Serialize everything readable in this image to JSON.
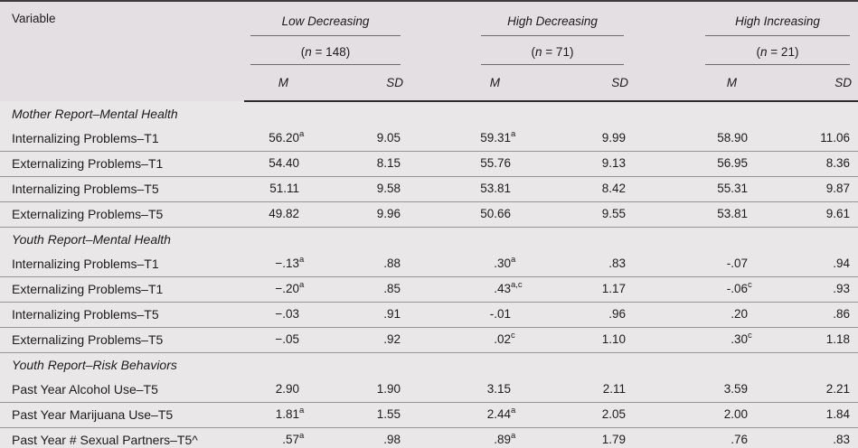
{
  "table": {
    "variable_header": "Variable",
    "groups": [
      {
        "name": "Low Decreasing",
        "n_prefix": "(",
        "n_symbol": "n",
        "n_rest": " = 148)",
        "m": "M",
        "sd": "SD"
      },
      {
        "name": "High Decreasing",
        "n_prefix": "(",
        "n_symbol": "n",
        "n_rest": " = 71)",
        "m": "M",
        "sd": "SD"
      },
      {
        "name": "High Increasing",
        "n_prefix": "(",
        "n_symbol": "n",
        "n_rest": " = 21)",
        "m": "M",
        "sd": "SD"
      }
    ],
    "sections": [
      {
        "title": "Mother Report–Mental Health",
        "rows": [
          {
            "label": "Internalizing Problems–T1",
            "values": [
              {
                "v": "56.20",
                "sup": "a"
              },
              {
                "v": "9.05"
              },
              {
                "v": "59.31",
                "sup": "a"
              },
              {
                "v": "9.99"
              },
              {
                "v": "58.90"
              },
              {
                "v": "11.06"
              }
            ]
          },
          {
            "label": "Externalizing Problems–T1",
            "values": [
              {
                "v": "54.40"
              },
              {
                "v": "8.15"
              },
              {
                "v": "55.76"
              },
              {
                "v": "9.13"
              },
              {
                "v": "56.95"
              },
              {
                "v": "8.36"
              }
            ]
          },
          {
            "label": "Internalizing Problems–T5",
            "values": [
              {
                "v": "51.11"
              },
              {
                "v": "9.58"
              },
              {
                "v": "53.81"
              },
              {
                "v": "8.42"
              },
              {
                "v": "55.31"
              },
              {
                "v": "9.87"
              }
            ]
          },
          {
            "label": "Externalizing Problems–T5",
            "values": [
              {
                "v": "49.82"
              },
              {
                "v": "9.96"
              },
              {
                "v": "50.66"
              },
              {
                "v": "9.55"
              },
              {
                "v": "53.81"
              },
              {
                "v": "9.61"
              }
            ]
          }
        ]
      },
      {
        "title": "Youth Report–Mental Health",
        "rows": [
          {
            "label": "Internalizing Problems–T1",
            "values": [
              {
                "v": "−.13",
                "sup": "a"
              },
              {
                "v": ".88"
              },
              {
                "v": ".30",
                "sup": "a"
              },
              {
                "v": ".83"
              },
              {
                "v": "-.07"
              },
              {
                "v": ".94"
              }
            ]
          },
          {
            "label": "Externalizing Problems–T1",
            "values": [
              {
                "v": "−.20",
                "sup": "a"
              },
              {
                "v": ".85"
              },
              {
                "v": ".43",
                "sup": "a,c"
              },
              {
                "v": "1.17"
              },
              {
                "v": "-.06",
                "sup": "c"
              },
              {
                "v": ".93"
              }
            ]
          },
          {
            "label": "Internalizing Problems–T5",
            "values": [
              {
                "v": "−.03"
              },
              {
                "v": ".91"
              },
              {
                "v": "-.01"
              },
              {
                "v": ".96"
              },
              {
                "v": ".20"
              },
              {
                "v": ".86"
              }
            ]
          },
          {
            "label": "Externalizing Problems–T5",
            "values": [
              {
                "v": "−.05"
              },
              {
                "v": ".92"
              },
              {
                "v": ".02",
                "sup": "c"
              },
              {
                "v": "1.10"
              },
              {
                "v": ".30",
                "sup": "c"
              },
              {
                "v": "1.18"
              }
            ]
          }
        ]
      },
      {
        "title": "Youth Report–Risk Behaviors",
        "rows": [
          {
            "label": "Past Year Alcohol Use–T5",
            "values": [
              {
                "v": "2.90"
              },
              {
                "v": "1.90"
              },
              {
                "v": "3.15"
              },
              {
                "v": "2.11"
              },
              {
                "v": "3.59"
              },
              {
                "v": "2.21"
              }
            ]
          },
          {
            "label": "Past Year Marijuana Use–T5",
            "values": [
              {
                "v": "1.81",
                "sup": "a"
              },
              {
                "v": "1.55"
              },
              {
                "v": "2.44",
                "sup": "a"
              },
              {
                "v": "2.05"
              },
              {
                "v": "2.00"
              },
              {
                "v": "1.84"
              }
            ]
          },
          {
            "label": "Past Year # Sexual Partners–T5^",
            "values": [
              {
                "v": ".57",
                "sup": "a"
              },
              {
                "v": ".98"
              },
              {
                "v": ".89",
                "sup": "a"
              },
              {
                "v": "1.79"
              },
              {
                "v": ".76"
              },
              {
                "v": ".83"
              }
            ]
          }
        ]
      }
    ]
  }
}
